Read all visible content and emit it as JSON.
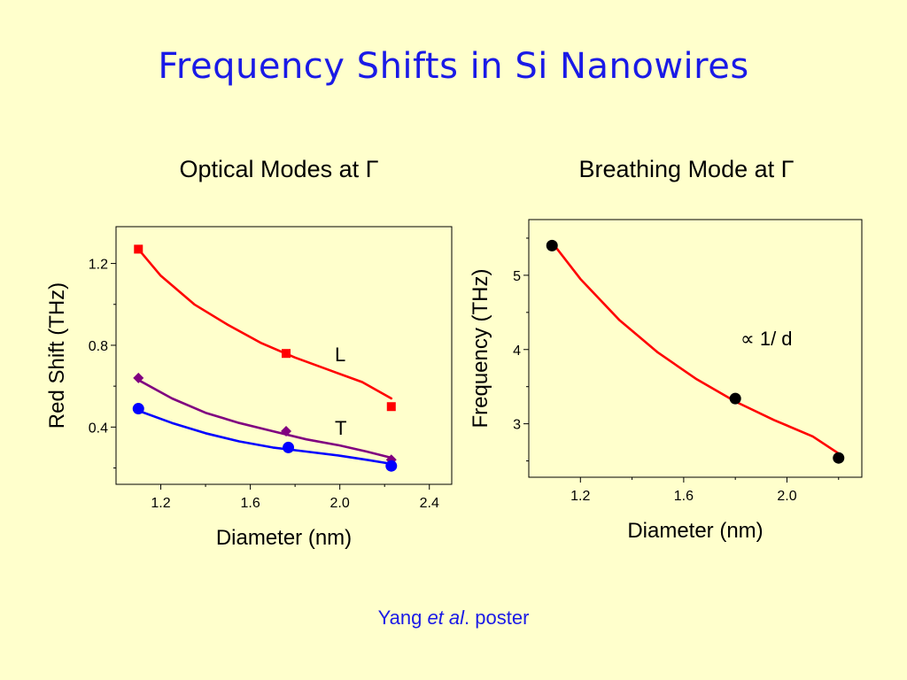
{
  "title": "Frequency Shifts in Si Nanowires",
  "footer": {
    "author": "Yang ",
    "etal": "et al",
    "rest": ". poster"
  },
  "chart_data": [
    {
      "type": "scatter",
      "title": "Optical Modes at Γ",
      "xlabel": "Diameter (nm)",
      "ylabel": "Red Shift (THz)",
      "xlim": [
        1.0,
        2.5
      ],
      "ylim": [
        0.12,
        1.38
      ],
      "xticks": [
        1.2,
        1.6,
        2.0,
        2.4
      ],
      "xtick_labels": [
        "1.2",
        "1.6",
        "2.0",
        "2.4"
      ],
      "yticks": [
        0.4,
        0.8,
        1.2
      ],
      "ytick_labels": [
        "0.4",
        "0.8",
        "1.2"
      ],
      "annotations": [
        "L",
        "T"
      ],
      "series": [
        {
          "marker": "square",
          "color": "#ff0000",
          "points": [
            [
              1.1,
              1.27
            ],
            [
              1.76,
              0.76
            ],
            [
              2.23,
              0.5
            ]
          ],
          "fit": [
            [
              1.1,
              1.27
            ],
            [
              1.2,
              1.14
            ],
            [
              1.35,
              1.0
            ],
            [
              1.5,
              0.9
            ],
            [
              1.65,
              0.81
            ],
            [
              1.8,
              0.74
            ],
            [
              1.95,
              0.68
            ],
            [
              2.1,
              0.62
            ],
            [
              2.23,
              0.54
            ]
          ]
        },
        {
          "marker": "diamond",
          "color": "#800080",
          "points": [
            [
              1.1,
              0.64
            ],
            [
              1.76,
              0.38
            ],
            [
              2.23,
              0.24
            ]
          ],
          "fit": [
            [
              1.1,
              0.63
            ],
            [
              1.25,
              0.54
            ],
            [
              1.4,
              0.47
            ],
            [
              1.55,
              0.42
            ],
            [
              1.7,
              0.38
            ],
            [
              1.85,
              0.34
            ],
            [
              2.0,
              0.31
            ],
            [
              2.12,
              0.28
            ],
            [
              2.23,
              0.25
            ]
          ]
        },
        {
          "marker": "circle",
          "color": "#0000ff",
          "points": [
            [
              1.1,
              0.49
            ],
            [
              1.77,
              0.3
            ],
            [
              2.23,
              0.21
            ]
          ],
          "fit": [
            [
              1.1,
              0.48
            ],
            [
              1.25,
              0.42
            ],
            [
              1.4,
              0.37
            ],
            [
              1.55,
              0.33
            ],
            [
              1.7,
              0.3
            ],
            [
              1.85,
              0.28
            ],
            [
              2.0,
              0.26
            ],
            [
              2.12,
              0.24
            ],
            [
              2.23,
              0.22
            ]
          ]
        }
      ]
    },
    {
      "type": "scatter",
      "title": "Breathing  Mode at Γ",
      "xlabel": "Diameter (nm)",
      "ylabel": "Frequency (THz)",
      "xlim": [
        1.0,
        2.29
      ],
      "ylim": [
        2.28,
        5.75
      ],
      "xticks": [
        1.2,
        1.6,
        2.0
      ],
      "xtick_labels": [
        "1.2",
        "1.6",
        "2.0"
      ],
      "yticks": [
        3,
        4,
        5
      ],
      "ytick_labels": [
        "3",
        "4",
        "5"
      ],
      "annotations": [
        "∝ 1/ d"
      ],
      "series": [
        {
          "marker": "circle",
          "color": "#000000",
          "points": [
            [
              1.09,
              5.4
            ],
            [
              1.8,
              3.34
            ],
            [
              2.2,
              2.54
            ]
          ],
          "fit": [
            [
              1.1,
              5.4
            ],
            [
              1.2,
              4.95
            ],
            [
              1.35,
              4.4
            ],
            [
              1.5,
              3.96
            ],
            [
              1.65,
              3.6
            ],
            [
              1.8,
              3.3
            ],
            [
              1.95,
              3.05
            ],
            [
              2.1,
              2.83
            ],
            [
              2.2,
              2.6
            ]
          ],
          "fit_color": "#ff0000"
        }
      ]
    }
  ]
}
